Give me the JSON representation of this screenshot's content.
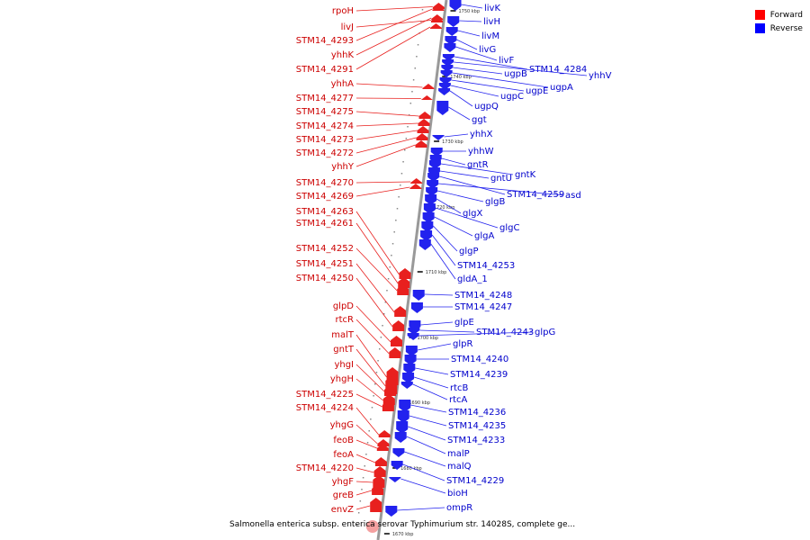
{
  "legend": {
    "forward_label": "Forward",
    "reverse_label": "Reverse",
    "forward_color": "#ff0000",
    "reverse_color": "#0000ff"
  },
  "caption": "Salmonella enterica subsp. enterica serovar Typhimurium str. 14028S, complete ge...",
  "colors": {
    "backbone": "#999999",
    "forward": "#e8201e",
    "reverse": "#2222ee",
    "forward_label": "#cc0000",
    "reverse_label": "#0000cc"
  },
  "ticks": [
    "1750 kbp",
    "1740 kbp",
    "1730 kbp",
    "1720 kbp",
    "1710 kbp",
    "1700 kbp",
    "1690 kbp",
    "1680 kbp",
    "1670 kbp"
  ],
  "forward_genes": [
    "rpoH",
    "livJ",
    "STM14_4293",
    "yhhK",
    "STM14_4291",
    "yhhA",
    "STM14_4277",
    "STM14_4275",
    "STM14_4274",
    "STM14_4273",
    "STM14_4272",
    "yhhY",
    "STM14_4270",
    "STM14_4269",
    "STM14_4263",
    "STM14_4261",
    "STM14_4252",
    "STM14_4251",
    "STM14_4250",
    "glpD",
    "rtcR",
    "malT",
    "gntT",
    "yhgI",
    "yhgH",
    "STM14_4225",
    "STM14_4224",
    "yhgG",
    "feoB",
    "feoA",
    "STM14_4220",
    "yhgF",
    "greB",
    "envZ"
  ],
  "reverse_genes": [
    "livK",
    "livH",
    "livM",
    "livG",
    "livF",
    "STM14_4284",
    "yhhV",
    "ugpB",
    "ugpA",
    "ugpE",
    "ugpC",
    "ugpQ",
    "ggt",
    "yhhX",
    "yhhW",
    "gntR",
    "gntK",
    "gntU",
    "STM14_4259",
    "asd",
    "glgB",
    "glgX",
    "glgC",
    "glgA",
    "glgP",
    "STM14_4253",
    "gldA_1",
    "STM14_4248",
    "STM14_4247",
    "glpE",
    "STM14_4243",
    "glpG",
    "glpR",
    "STM14_4240",
    "STM14_4239",
    "rtcB",
    "rtcA",
    "STM14_4236",
    "STM14_4235",
    "STM14_4233",
    "malP",
    "malQ",
    "STM14_4229",
    "bioH",
    "ompR"
  ]
}
